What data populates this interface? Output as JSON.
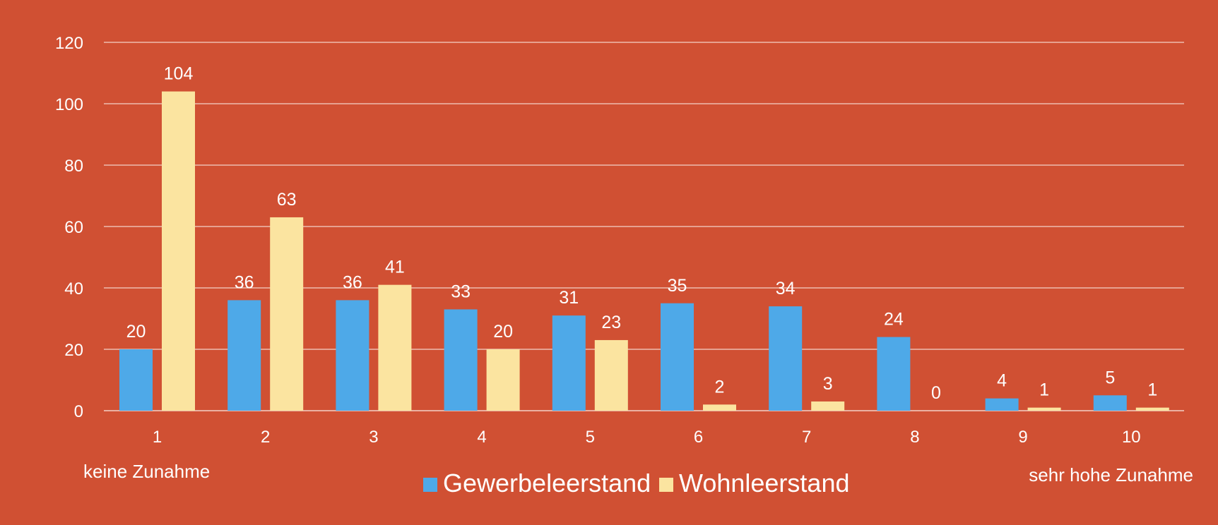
{
  "colors": {
    "background": "#D05033",
    "gridline": "#F3D1C7",
    "text": "#FFFFFF"
  },
  "chart_data": {
    "type": "bar",
    "categories": [
      "1",
      "2",
      "3",
      "4",
      "5",
      "6",
      "7",
      "8",
      "9",
      "10"
    ],
    "series": [
      {
        "name": "Gewerbeleerstand",
        "color": "#4EA9E8",
        "values": [
          20,
          36,
          36,
          33,
          31,
          35,
          34,
          24,
          4,
          5
        ]
      },
      {
        "name": "Wohnleerstand",
        "color": "#FBE4A0",
        "values": [
          104,
          63,
          41,
          20,
          23,
          2,
          3,
          0,
          1,
          1
        ]
      }
    ],
    "ylim": [
      0,
      120
    ],
    "yticks": [
      0,
      20,
      40,
      60,
      80,
      100,
      120
    ],
    "grid": true,
    "legend_position": "bottom",
    "annotations": {
      "left": "keine Zunahme",
      "right": "sehr hohe Zunahme"
    }
  }
}
